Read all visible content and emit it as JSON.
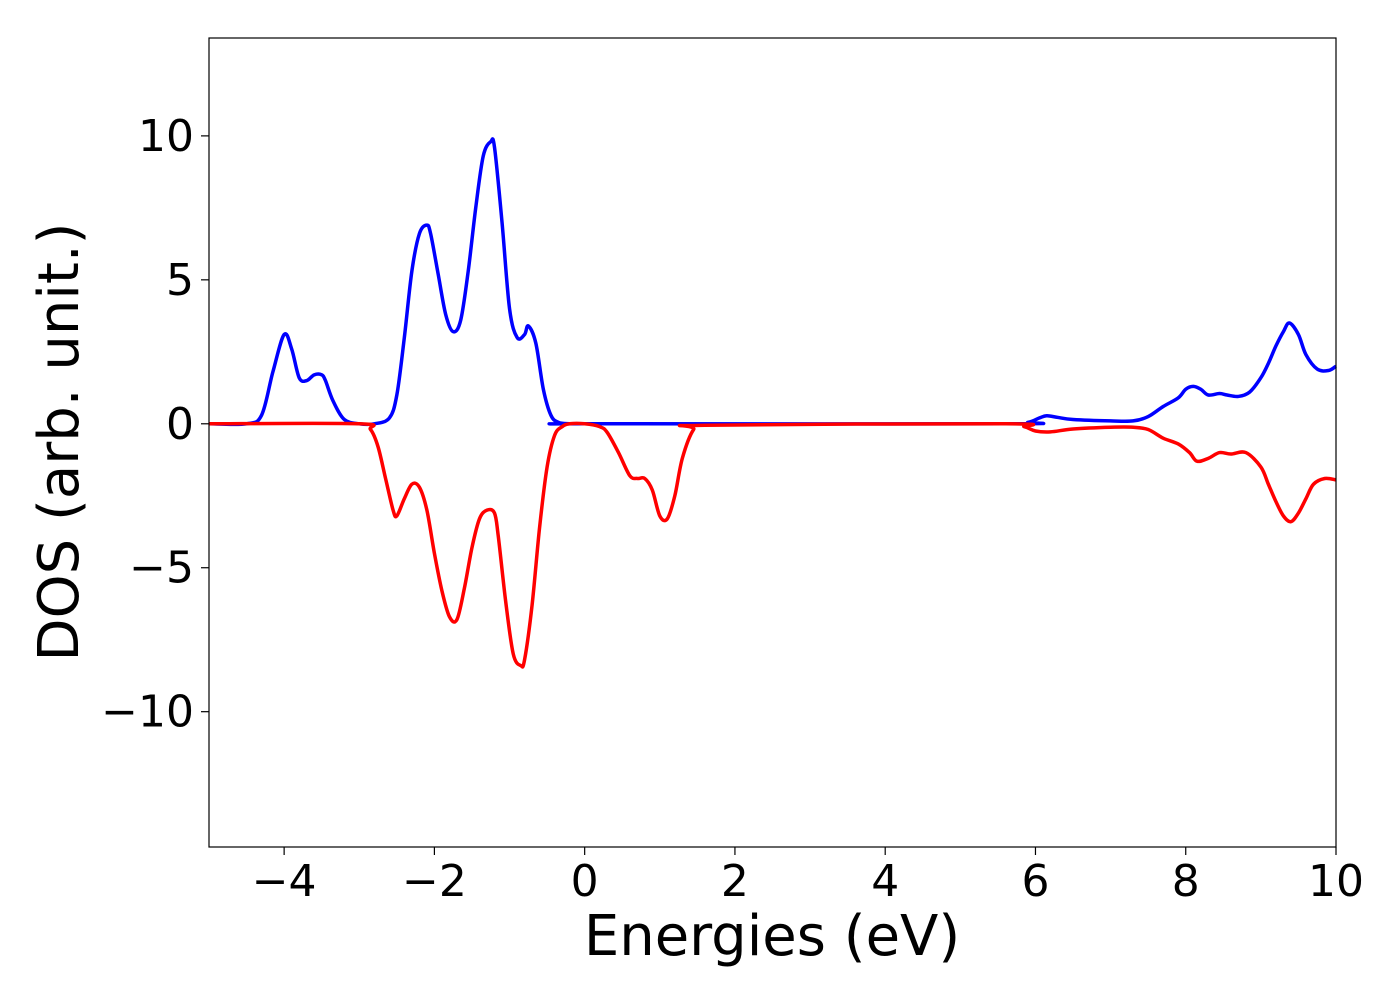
{
  "chart_data": {
    "type": "line",
    "title": "",
    "xlabel": "Energies (eV)",
    "ylabel": "DOS (arb. unit.)",
    "xlim": [
      -5,
      10
    ],
    "ylim": [
      -14.7,
      13.4
    ],
    "xticks": [
      -4,
      -2,
      0,
      2,
      4,
      6,
      8,
      10
    ],
    "xtick_labels": [
      "−4",
      "−2",
      "0",
      "2",
      "4",
      "6",
      "8",
      "10"
    ],
    "yticks": [
      10,
      5,
      0,
      -5,
      -10
    ],
    "ytick_labels": [
      "10",
      "5",
      "0",
      "−5",
      "−10"
    ],
    "grid": false,
    "legend": "none",
    "series": [
      {
        "color": "#0000ff",
        "x": [
          -5.0,
          -4.5,
          -4.3,
          -4.15,
          -4.0,
          -3.9,
          -3.8,
          -3.7,
          -3.6,
          -3.5,
          -3.45,
          -3.35,
          -3.2,
          -3.0,
          -2.8,
          -2.6,
          -2.5,
          -2.4,
          -2.3,
          -2.2,
          -2.1,
          -2.05,
          -1.95,
          -1.85,
          -1.75,
          -1.65,
          -1.55,
          -1.45,
          -1.35,
          -1.25,
          -1.2,
          -1.1,
          -1.0,
          -0.9,
          -0.8,
          -0.75,
          -0.65,
          -0.55,
          -0.45,
          -0.35,
          -0.2,
          0.0,
          5.6,
          5.9,
          6.05,
          6.15,
          6.3,
          6.5,
          7.0,
          7.3,
          7.5,
          7.7,
          7.9,
          8.0,
          8.1,
          8.2,
          8.3,
          8.45,
          8.55,
          8.7,
          8.85,
          9.0,
          9.1,
          9.2,
          9.3,
          9.38,
          9.5,
          9.6,
          9.75,
          9.9,
          10.0
        ],
        "y": [
          0,
          0,
          0.3,
          1.8,
          3.1,
          2.6,
          1.6,
          1.5,
          1.7,
          1.7,
          1.5,
          0.8,
          0.15,
          0.0,
          0.0,
          0.2,
          1.0,
          3.0,
          5.3,
          6.6,
          6.9,
          6.6,
          5.2,
          3.8,
          3.2,
          3.6,
          5.3,
          7.5,
          9.3,
          9.8,
          9.6,
          7.0,
          4.0,
          3.0,
          3.1,
          3.4,
          2.8,
          1.2,
          0.3,
          0.05,
          0.0,
          0.0,
          0.0,
          0.05,
          0.2,
          0.28,
          0.22,
          0.15,
          0.1,
          0.1,
          0.25,
          0.6,
          0.9,
          1.2,
          1.3,
          1.2,
          1.0,
          1.05,
          1.0,
          0.95,
          1.1,
          1.6,
          2.1,
          2.7,
          3.2,
          3.5,
          3.1,
          2.4,
          1.9,
          1.85,
          2.0
        ]
      },
      {
        "color": "#ff0000",
        "x": [
          -5.0,
          -3.0,
          -2.85,
          -2.75,
          -2.65,
          -2.55,
          -2.5,
          -2.4,
          -2.3,
          -2.2,
          -2.1,
          -2.0,
          -1.9,
          -1.8,
          -1.7,
          -1.6,
          -1.5,
          -1.4,
          -1.3,
          -1.2,
          -1.15,
          -1.05,
          -0.95,
          -0.85,
          -0.8,
          -0.7,
          -0.6,
          -0.5,
          -0.4,
          -0.3,
          -0.2,
          0.0,
          0.2,
          0.3,
          0.45,
          0.6,
          0.7,
          0.8,
          0.9,
          1.0,
          1.1,
          1.2,
          1.3,
          1.45,
          1.6,
          5.6,
          5.85,
          6.0,
          6.2,
          6.5,
          7.0,
          7.3,
          7.5,
          7.7,
          7.9,
          8.05,
          8.15,
          8.3,
          8.45,
          8.6,
          8.8,
          9.0,
          9.1,
          9.2,
          9.3,
          9.4,
          9.5,
          9.6,
          9.7,
          9.85,
          10.0
        ],
        "y": [
          0,
          0,
          -0.2,
          -0.8,
          -1.9,
          -3.0,
          -3.2,
          -2.6,
          -2.1,
          -2.2,
          -3.0,
          -4.5,
          -5.8,
          -6.7,
          -6.8,
          -5.7,
          -4.3,
          -3.3,
          -3.0,
          -3.1,
          -3.9,
          -6.2,
          -8.0,
          -8.4,
          -8.2,
          -6.3,
          -3.6,
          -1.5,
          -0.4,
          -0.1,
          0.0,
          0.0,
          -0.1,
          -0.3,
          -1.0,
          -1.8,
          -1.9,
          -1.9,
          -2.3,
          -3.2,
          -3.3,
          -2.5,
          -1.2,
          -0.2,
          -0.05,
          0.0,
          -0.1,
          -0.25,
          -0.28,
          -0.18,
          -0.12,
          -0.12,
          -0.2,
          -0.5,
          -0.7,
          -1.0,
          -1.3,
          -1.2,
          -1.0,
          -1.05,
          -1.0,
          -1.5,
          -2.1,
          -2.7,
          -3.2,
          -3.4,
          -3.1,
          -2.6,
          -2.1,
          -1.9,
          -1.95
        ]
      }
    ]
  }
}
